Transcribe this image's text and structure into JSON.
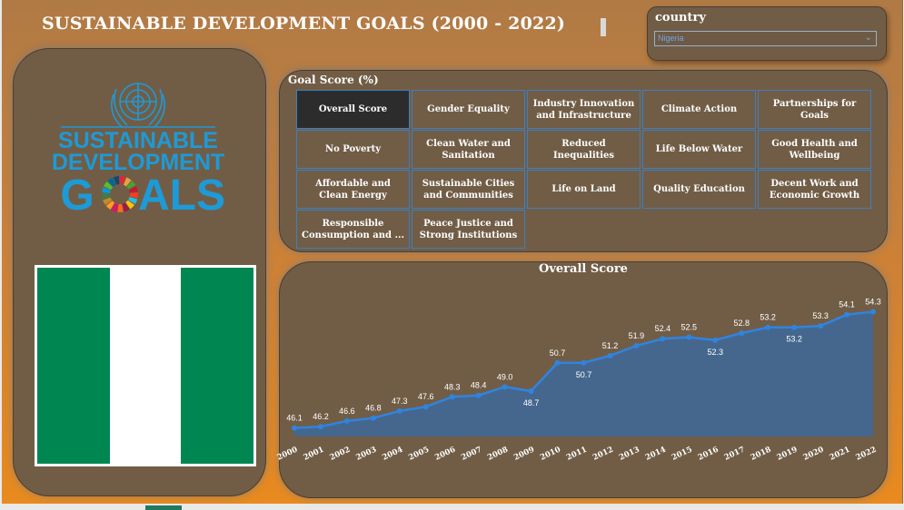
{
  "header": {
    "title": "SUSTAINABLE DEVELOPMENT GOALS (2000 - 2022)"
  },
  "filter": {
    "label": "country",
    "value": "Nigeria"
  },
  "logo": {
    "line1": "SUSTAINABLE",
    "line2": "DEVELOPMENT",
    "line3_prefix": "G",
    "line3_suffix": "ALS",
    "color": "#1e9ad6"
  },
  "flag": {
    "colors": [
      "#008751",
      "#ffffff",
      "#008751"
    ]
  },
  "goal_section": {
    "title": "Goal Score (%)",
    "buttons": [
      {
        "label": "Overall Score",
        "active": true
      },
      {
        "label": "Gender Equality"
      },
      {
        "label": "Industry Innovation and Infrastructure"
      },
      {
        "label": "Climate Action"
      },
      {
        "label": "Partnerships for Goals"
      },
      {
        "label": "No Poverty"
      },
      {
        "label": "Clean Water and Sanitation"
      },
      {
        "label": "Reduced Inequalities"
      },
      {
        "label": "Life Below Water"
      },
      {
        "label": "Good Health and Wellbeing"
      },
      {
        "label": "Affordable and Clean Energy"
      },
      {
        "label": "Sustainable Cities and Communities"
      },
      {
        "label": "Life on Land"
      },
      {
        "label": "Quality Education"
      },
      {
        "label": "Decent Work and Economic Growth"
      },
      {
        "label": "Responsible Consumption and ..."
      },
      {
        "label": "Peace Justice and Strong Institutions"
      }
    ]
  },
  "chart_data": {
    "type": "area",
    "title": "Overall Score",
    "x": [
      "2000",
      "2001",
      "2002",
      "2003",
      "2004",
      "2005",
      "2006",
      "2007",
      "2008",
      "2009",
      "2010",
      "2011",
      "2012",
      "2013",
      "2014",
      "2015",
      "2016",
      "2017",
      "2018",
      "2019",
      "2020",
      "2021",
      "2022"
    ],
    "values": [
      46.1,
      46.2,
      46.6,
      46.8,
      47.3,
      47.6,
      48.3,
      48.4,
      49.0,
      48.7,
      50.7,
      50.7,
      51.2,
      51.9,
      52.4,
      52.5,
      52.3,
      52.8,
      53.2,
      53.2,
      53.3,
      54.1,
      54.3
    ],
    "labels": [
      "46.1",
      "46.2",
      "46.6",
      "46.8",
      "47.3",
      "47.6",
      "48.3",
      "48.4",
      "49.0",
      "48.7",
      "50.7",
      "50.7",
      "51.2",
      "51.9",
      "52.4",
      "52.5",
      "52.3",
      "52.8",
      "53.2",
      "53.2",
      "53.3",
      "54.1",
      "54.3"
    ],
    "label_pos": [
      "above",
      "above",
      "above",
      "above",
      "above",
      "above",
      "above",
      "above",
      "above",
      "below",
      "above",
      "below",
      "above",
      "above",
      "above",
      "above",
      "below",
      "above",
      "above",
      "below",
      "above",
      "above",
      "above"
    ],
    "line_color": "#2f84e0",
    "fill_color": "#45678e"
  }
}
